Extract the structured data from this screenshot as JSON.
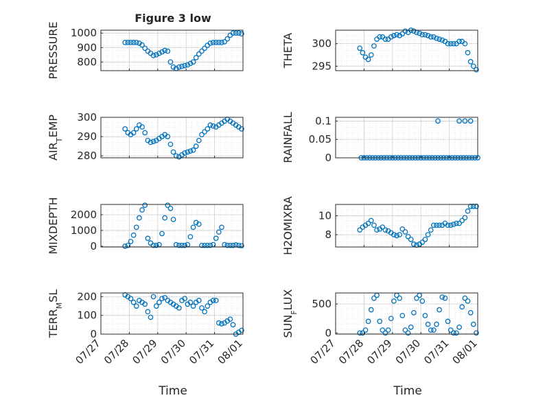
{
  "figure": {
    "title": "Figure 3 low",
    "marker_color": "#0072BD",
    "grid": true,
    "x_ticks": [
      "07/27",
      "07/28",
      "07/29",
      "07/30",
      "07/31",
      "08/01"
    ],
    "xlabel": "Time"
  },
  "chart_data": [
    {
      "type": "scatter",
      "ylabel": "PRESSURE",
      "ylim": [
        740,
        1020
      ],
      "yticks": [
        "800",
        "900",
        "1000"
      ],
      "ytick_values": [
        800,
        900,
        1000
      ],
      "x": [
        0.85,
        0.95,
        1.05,
        1.15,
        1.25,
        1.35,
        1.45,
        1.55,
        1.65,
        1.75,
        1.85,
        1.95,
        2.05,
        2.15,
        2.25,
        2.35,
        2.45,
        2.55,
        2.65,
        2.75,
        2.85,
        2.95,
        3.05,
        3.15,
        3.25,
        3.35,
        3.45,
        3.55,
        3.65,
        3.75,
        3.85,
        3.95,
        4.05,
        4.15,
        4.25,
        4.35,
        4.45,
        4.55,
        4.65,
        4.75,
        4.85,
        4.95
      ],
      "y": [
        935,
        935,
        935,
        935,
        935,
        930,
        918,
        895,
        875,
        860,
        845,
        850,
        860,
        870,
        880,
        875,
        800,
        765,
        755,
        765,
        770,
        775,
        780,
        790,
        800,
        830,
        855,
        875,
        895,
        915,
        930,
        935,
        935,
        935,
        935,
        940,
        960,
        985,
        1000,
        1000,
        1000,
        995
      ]
    },
    {
      "type": "scatter",
      "ylabel": "THETA",
      "ylim": [
        294,
        303
      ],
      "yticks": [
        "295",
        "300"
      ],
      "ytick_values": [
        295,
        300
      ],
      "x": [
        0.85,
        0.95,
        1.05,
        1.15,
        1.25,
        1.35,
        1.45,
        1.55,
        1.65,
        1.75,
        1.85,
        1.95,
        2.05,
        2.15,
        2.25,
        2.35,
        2.45,
        2.55,
        2.65,
        2.75,
        2.85,
        2.95,
        3.05,
        3.15,
        3.25,
        3.35,
        3.45,
        3.55,
        3.65,
        3.75,
        3.85,
        3.95,
        4.05,
        4.15,
        4.25,
        4.35,
        4.45,
        4.55,
        4.65,
        4.75,
        4.85,
        4.95
      ],
      "y": [
        299,
        298,
        297,
        296.5,
        297.5,
        299.5,
        301,
        301.5,
        301.5,
        301,
        301,
        301.5,
        301.8,
        302,
        301.8,
        302.2,
        302.8,
        302.5,
        303,
        302.8,
        302.5,
        302.3,
        302,
        302,
        301.8,
        301.5,
        301.5,
        301.2,
        301,
        300.8,
        300.5,
        300,
        300,
        300,
        300,
        300.5,
        300.5,
        300,
        298,
        296,
        295,
        294.2
      ]
    },
    {
      "type": "scatter",
      "ylabel": "AIR_TEMP",
      "ylim": [
        279,
        300
      ],
      "yticks": [
        "280",
        "290",
        "300"
      ],
      "ytick_values": [
        280,
        290,
        300
      ],
      "x": [
        0.85,
        0.95,
        1.05,
        1.15,
        1.25,
        1.35,
        1.45,
        1.55,
        1.65,
        1.75,
        1.85,
        1.95,
        2.05,
        2.15,
        2.25,
        2.35,
        2.45,
        2.55,
        2.65,
        2.75,
        2.85,
        2.95,
        3.05,
        3.15,
        3.25,
        3.35,
        3.45,
        3.55,
        3.65,
        3.75,
        3.85,
        3.95,
        4.05,
        4.15,
        4.25,
        4.35,
        4.45,
        4.55,
        4.65,
        4.75,
        4.85,
        4.95
      ],
      "y": [
        294,
        292,
        291,
        292,
        294,
        296,
        295,
        292,
        288,
        287,
        287.5,
        288,
        289,
        290,
        291,
        290,
        286,
        282,
        280,
        279.5,
        280.5,
        281.5,
        282,
        282.5,
        283,
        285,
        288,
        291,
        292.5,
        294,
        296,
        295.5,
        295,
        296,
        297,
        298,
        299,
        298,
        297,
        296,
        295,
        294
      ]
    },
    {
      "type": "scatter",
      "ylabel": "RAINFALL",
      "ylim": [
        0,
        0.11
      ],
      "yticks": [
        "0",
        "0.05",
        "0.1"
      ],
      "ytick_values": [
        0,
        0.05,
        0.1
      ],
      "x": [
        0.9,
        1.0,
        1.1,
        1.2,
        1.3,
        1.4,
        1.5,
        1.6,
        1.7,
        1.8,
        1.9,
        2.0,
        2.1,
        2.2,
        2.3,
        2.4,
        2.5,
        2.6,
        2.7,
        2.8,
        2.9,
        3.0,
        3.1,
        3.2,
        3.3,
        3.4,
        3.5,
        3.6,
        3.7,
        3.8,
        3.9,
        4.0,
        4.1,
        4.2,
        4.3,
        4.4,
        4.5,
        4.6,
        4.7,
        4.8,
        4.9,
        5.0,
        3.6,
        4.35,
        4.55,
        4.75
      ],
      "y": [
        0,
        0,
        0,
        0,
        0,
        0,
        0,
        0,
        0,
        0,
        0,
        0,
        0,
        0,
        0,
        0,
        0,
        0,
        0,
        0,
        0,
        0,
        0,
        0,
        0,
        0,
        0,
        0,
        0,
        0,
        0,
        0,
        0,
        0,
        0,
        0,
        0,
        0,
        0,
        0,
        0,
        0,
        0.1,
        0.1,
        0.1,
        0.1
      ]
    },
    {
      "type": "scatter",
      "ylabel": "MIXDEPTH",
      "ylim": [
        -50,
        2650
      ],
      "yticks": [
        "0",
        "1000",
        "2000"
      ],
      "ytick_values": [
        0,
        1000,
        2000
      ],
      "x": [
        0.85,
        0.95,
        1.05,
        1.15,
        1.25,
        1.35,
        1.45,
        1.55,
        1.65,
        1.75,
        1.85,
        1.95,
        2.05,
        2.15,
        2.25,
        2.35,
        2.45,
        2.55,
        2.65,
        2.75,
        2.85,
        2.95,
        3.05,
        3.15,
        3.25,
        3.35,
        3.45,
        3.55,
        3.65,
        3.75,
        3.85,
        3.95,
        4.05,
        4.15,
        4.25,
        4.35,
        4.45,
        4.55,
        4.65,
        4.75,
        4.85,
        4.95
      ],
      "y": [
        0,
        50,
        300,
        700,
        1200,
        1800,
        2300,
        2600,
        500,
        200,
        50,
        50,
        100,
        800,
        1800,
        2600,
        2400,
        1700,
        100,
        50,
        50,
        50,
        100,
        600,
        1200,
        1500,
        1400,
        50,
        50,
        50,
        50,
        100,
        500,
        900,
        1200,
        100,
        50,
        50,
        50,
        80,
        50,
        30
      ]
    },
    {
      "type": "scatter",
      "ylabel": "H2OMIXRA",
      "ylim": [
        6.7,
        11.2
      ],
      "yticks": [
        "8",
        "10"
      ],
      "ytick_values": [
        8,
        10
      ],
      "x": [
        0.85,
        0.95,
        1.05,
        1.15,
        1.25,
        1.35,
        1.45,
        1.55,
        1.65,
        1.75,
        1.85,
        1.95,
        2.05,
        2.15,
        2.25,
        2.35,
        2.45,
        2.55,
        2.65,
        2.75,
        2.85,
        2.95,
        3.05,
        3.15,
        3.25,
        3.35,
        3.45,
        3.55,
        3.65,
        3.75,
        3.85,
        3.95,
        4.05,
        4.15,
        4.25,
        4.35,
        4.45,
        4.55,
        4.65,
        4.75,
        4.85,
        4.95
      ],
      "y": [
        8.5,
        8.8,
        9.0,
        9.2,
        9.5,
        9.0,
        8.5,
        8.6,
        8.8,
        8.5,
        8.4,
        8.2,
        8.0,
        7.9,
        8.0,
        8.6,
        8.3,
        7.8,
        7.5,
        7.0,
        6.9,
        7.0,
        7.2,
        7.5,
        8.0,
        8.5,
        9.0,
        9.0,
        9.0,
        9.0,
        9.2,
        9.0,
        9.0,
        9.1,
        9.2,
        9.2,
        9.5,
        9.8,
        10.5,
        11.0,
        11.0,
        11.0
      ]
    },
    {
      "type": "scatter",
      "ylabel": "TERR_MSL",
      "ylim": [
        0,
        220
      ],
      "yticks": [
        "0",
        "100",
        "200"
      ],
      "ytick_values": [
        0,
        100,
        200
      ],
      "x": [
        0.85,
        0.95,
        1.05,
        1.15,
        1.25,
        1.35,
        1.45,
        1.55,
        1.65,
        1.75,
        1.85,
        1.95,
        2.05,
        2.15,
        2.25,
        2.35,
        2.45,
        2.55,
        2.65,
        2.75,
        2.85,
        2.95,
        3.05,
        3.15,
        3.25,
        3.35,
        3.45,
        3.55,
        3.65,
        3.75,
        3.85,
        3.95,
        4.05,
        4.15,
        4.25,
        4.35,
        4.45,
        4.55,
        4.65,
        4.75,
        4.85,
        4.95
      ],
      "y": [
        210,
        200,
        190,
        170,
        150,
        180,
        170,
        160,
        120,
        90,
        200,
        150,
        170,
        190,
        195,
        180,
        170,
        160,
        150,
        140,
        180,
        190,
        160,
        170,
        150,
        170,
        180,
        140,
        120,
        150,
        170,
        180,
        180,
        60,
        55,
        60,
        70,
        80,
        50,
        0,
        10,
        20
      ]
    },
    {
      "type": "scatter",
      "ylabel": "SUN_FLUX",
      "ylim": [
        -20,
        690
      ],
      "yticks": [
        "0",
        "500"
      ],
      "ytick_values": [
        0,
        500
      ],
      "x": [
        0.85,
        0.95,
        1.05,
        1.15,
        1.25,
        1.35,
        1.45,
        1.55,
        1.65,
        1.75,
        1.85,
        1.95,
        2.05,
        2.15,
        2.25,
        2.35,
        2.45,
        2.55,
        2.65,
        2.75,
        2.85,
        2.95,
        3.05,
        3.15,
        3.25,
        3.35,
        3.45,
        3.55,
        3.65,
        3.75,
        3.85,
        3.95,
        4.05,
        4.15,
        4.25,
        4.35,
        4.45,
        4.55,
        4.65,
        4.75,
        4.85,
        4.95
      ],
      "y": [
        0,
        0,
        50,
        200,
        400,
        600,
        650,
        200,
        50,
        0,
        50,
        250,
        550,
        650,
        600,
        300,
        50,
        0,
        100,
        350,
        600,
        650,
        550,
        300,
        150,
        50,
        50,
        150,
        400,
        620,
        600,
        200,
        50,
        0,
        0,
        100,
        450,
        600,
        550,
        350,
        150,
        0
      ]
    }
  ]
}
